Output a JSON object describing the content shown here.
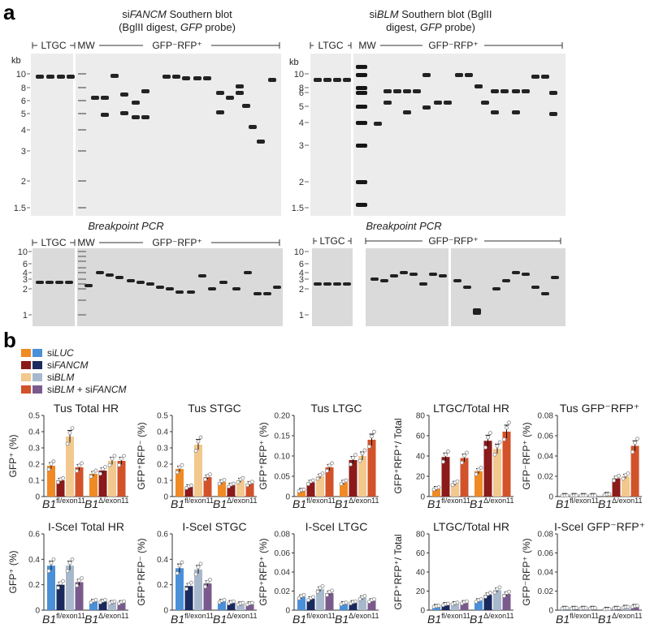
{
  "panel_a": {
    "label": "a",
    "blot1": {
      "title_line1_prefix": "si",
      "title_line1_italic": "FANCM",
      "title_line1_suffix": " Southern blot",
      "title_line2_a": "(BglII digest, ",
      "title_line2_italic": "GFP",
      "title_line2_b": " probe)",
      "group_ltgc": "LTGC",
      "group_mw": "MW",
      "group_gfp": "GFP⁻RFP⁺",
      "kb_label": "kb",
      "markers": [
        "10",
        "8",
        "6",
        "5",
        "4",
        "3",
        "2",
        "1.5"
      ]
    },
    "blot2": {
      "title_line1_prefix": "si",
      "title_line1_italic": "BLM",
      "title_line1_suffix": " Southern blot",
      "title_line1_extra": " (BglII",
      "title_line2_a": "digest, ",
      "title_line2_italic": "GFP",
      "title_line2_b": " probe)",
      "group_ltgc": "LTGC",
      "group_mw": "MW",
      "group_gfp": "GFP⁻RFP⁺",
      "kb_label": "kb",
      "markers": [
        "10",
        "8",
        "6",
        "5",
        "4",
        "3",
        "2",
        "1.5"
      ]
    },
    "pcr1": {
      "title": "Breakpoint PCR",
      "group_ltgc": "LTGC",
      "group_mw": "MW",
      "group_gfp": "GFP⁻RFP⁺",
      "markers": [
        "10",
        "6",
        "4",
        "3",
        "2",
        "1"
      ]
    },
    "pcr2": {
      "title": "Breakpoint PCR",
      "group_ltgc": "LTGC",
      "group_gfp": "GFP⁻RFP⁺",
      "markers": [
        "10",
        "6",
        "4",
        "3",
        "2",
        "1"
      ]
    }
  },
  "panel_b": {
    "label": "b",
    "legend": [
      {
        "prefix": "si",
        "italic": "LUC",
        "suffix": "",
        "color_a": "#f08a24",
        "color_b": "#4a90d9"
      },
      {
        "prefix": "si",
        "italic": "FANCM",
        "suffix": "",
        "color_a": "#8b1a1a",
        "color_b": "#1a2a5e"
      },
      {
        "prefix": "si",
        "italic": "BLM",
        "suffix": "",
        "color_a": "#f2c88e",
        "color_b": "#a8b8cc"
      },
      {
        "prefix": "si",
        "italic": "BLM",
        "suffix": " + si",
        "italic2": "FANCM",
        "color_a": "#d2522a",
        "color_b": "#7a5a8c"
      }
    ],
    "xgroup_fl": "B1",
    "xgroup_fl_sup": "fl/exon11",
    "xgroup_delta": "B1",
    "xgroup_delta_sup": "Δ/exon11",
    "colors_tus": [
      "#f08a24",
      "#8b1a1a",
      "#f2c88e",
      "#d2522a"
    ],
    "colors_isce": [
      "#4a90d9",
      "#1a2a5e",
      "#a8b8cc",
      "#7a5a8c"
    ]
  },
  "chart_data": [
    {
      "type": "bar",
      "title": "Tus Total HR",
      "ylabel": "GFP⁺ (%)",
      "yticks": [
        "0",
        "0.1",
        "0.2",
        "0.3",
        "0.4",
        "0.5"
      ],
      "ylim": [
        0,
        0.5
      ],
      "categories": [
        "B1 fl/exon11",
        "B1 Δ/exon11"
      ],
      "series": [
        {
          "name": "siLUC",
          "values": [
            0.19,
            0.14
          ]
        },
        {
          "name": "siFANCM",
          "values": [
            0.1,
            0.16
          ]
        },
        {
          "name": "siBLM",
          "values": [
            0.37,
            0.22
          ]
        },
        {
          "name": "siBLM + siFANCM",
          "values": [
            0.18,
            0.22
          ]
        }
      ]
    },
    {
      "type": "bar",
      "title": "Tus STGC",
      "ylabel": "GFP⁺RFP⁻ (%)",
      "yticks": [
        "0",
        "0.1",
        "0.2",
        "0.3",
        "0.4",
        "0.5"
      ],
      "ylim": [
        0,
        0.5
      ],
      "categories": [
        "B1 fl/exon11",
        "B1 Δ/exon11"
      ],
      "series": [
        {
          "name": "siLUC",
          "values": [
            0.17,
            0.09
          ]
        },
        {
          "name": "siFANCM",
          "values": [
            0.06,
            0.07
          ]
        },
        {
          "name": "siBLM",
          "values": [
            0.32,
            0.1
          ]
        },
        {
          "name": "siBLM + siFANCM",
          "values": [
            0.12,
            0.08
          ]
        }
      ]
    },
    {
      "type": "bar",
      "title": "Tus LTGC",
      "ylabel": "GFP⁺RFP⁺ (%)",
      "yticks": [
        "0",
        "0.05",
        "0.10",
        "0.15",
        "0.20"
      ],
      "ylim": [
        0,
        0.2
      ],
      "categories": [
        "B1 fl/exon11",
        "B1 Δ/exon11"
      ],
      "series": [
        {
          "name": "siLUC",
          "values": [
            0.015,
            0.035
          ]
        },
        {
          "name": "siFANCM",
          "values": [
            0.035,
            0.09
          ]
        },
        {
          "name": "siBLM",
          "values": [
            0.05,
            0.1
          ]
        },
        {
          "name": "siBLM + siFANCM",
          "values": [
            0.072,
            0.14
          ]
        }
      ]
    },
    {
      "type": "bar",
      "title": "LTGC/Total HR",
      "ylabel": "GFP⁺RFP⁺/ Total",
      "yticks": [
        "0",
        "20",
        "40",
        "60",
        "80"
      ],
      "ylim": [
        0,
        80
      ],
      "categories": [
        "B1 fl/exon11",
        "B1 Δ/exon11"
      ],
      "series": [
        {
          "name": "siLUC",
          "values": [
            8,
            25
          ]
        },
        {
          "name": "siFANCM",
          "values": [
            39,
            55
          ]
        },
        {
          "name": "siBLM",
          "values": [
            13,
            47
          ]
        },
        {
          "name": "siBLM + siFANCM",
          "values": [
            38,
            64
          ]
        }
      ]
    },
    {
      "type": "bar",
      "title": "Tus GFP⁻RFP⁺",
      "ylabel": "GFP⁻RFP⁺ (%)",
      "yticks": [
        "0",
        "0.02",
        "0.04",
        "0.06",
        "0.08"
      ],
      "ylim": [
        0,
        0.08
      ],
      "categories": [
        "B1 fl/exon11",
        "B1 Δ/exon11"
      ],
      "series": [
        {
          "name": "siLUC",
          "values": [
            0.001,
            0.002
          ]
        },
        {
          "name": "siFANCM",
          "values": [
            0.001,
            0.018
          ]
        },
        {
          "name": "siBLM",
          "values": [
            0.001,
            0.02
          ]
        },
        {
          "name": "siBLM + siFANCM",
          "values": [
            0.001,
            0.05
          ]
        }
      ]
    },
    {
      "type": "bar",
      "title": "I-SceI Total HR",
      "ylabel": "GFP⁺ (%)",
      "yticks": [
        "0",
        "0.2",
        "0.4",
        "0.6"
      ],
      "ylim": [
        0,
        0.6
      ],
      "categories": [
        "B1 fl/exon11",
        "B1 Δ/exon11"
      ],
      "series": [
        {
          "name": "siLUC",
          "values": [
            0.35,
            0.07
          ]
        },
        {
          "name": "siFANCM",
          "values": [
            0.2,
            0.07
          ]
        },
        {
          "name": "siBLM",
          "values": [
            0.35,
            0.06
          ]
        },
        {
          "name": "siBLM + siFANCM",
          "values": [
            0.22,
            0.06
          ]
        }
      ]
    },
    {
      "type": "bar",
      "title": "I-SceI STGC",
      "ylabel": "GFP⁺RFP⁻ (%)",
      "yticks": [
        "0",
        "0.2",
        "0.4",
        "0.6"
      ],
      "ylim": [
        0,
        0.6
      ],
      "categories": [
        "B1 fl/exon11",
        "B1 Δ/exon11"
      ],
      "series": [
        {
          "name": "siLUC",
          "values": [
            0.33,
            0.07
          ]
        },
        {
          "name": "siFANCM",
          "values": [
            0.19,
            0.06
          ]
        },
        {
          "name": "siBLM",
          "values": [
            0.32,
            0.05
          ]
        },
        {
          "name": "siBLM + siFANCM",
          "values": [
            0.21,
            0.05
          ]
        }
      ]
    },
    {
      "type": "bar",
      "title": "I-SceI LTGC",
      "ylabel": "GFP⁺RFP⁺ (%)",
      "yticks": [
        "0",
        "0.02",
        "0.04",
        "0.06",
        "0.08"
      ],
      "ylim": [
        0,
        0.08
      ],
      "categories": [
        "B1 fl/exon11",
        "B1 Δ/exon11"
      ],
      "series": [
        {
          "name": "siLUC",
          "values": [
            0.014,
            0.007
          ]
        },
        {
          "name": "siFANCM",
          "values": [
            0.012,
            0.008
          ]
        },
        {
          "name": "siBLM",
          "values": [
            0.022,
            0.013
          ]
        },
        {
          "name": "siBLM + siFANCM",
          "values": [
            0.018,
            0.01
          ]
        }
      ]
    },
    {
      "type": "bar",
      "title": "LTGC/Total HR",
      "ylabel": "GFP⁺RFP⁺/ Total",
      "yticks": [
        "0",
        "20",
        "40",
        "60",
        "80"
      ],
      "ylim": [
        0,
        80
      ],
      "categories": [
        "B1 fl/exon11",
        "B1 Δ/exon11"
      ],
      "series": [
        {
          "name": "siLUC",
          "values": [
            4,
            10
          ]
        },
        {
          "name": "siFANCM",
          "values": [
            6,
            16
          ]
        },
        {
          "name": "siBLM",
          "values": [
            7,
            21
          ]
        },
        {
          "name": "siBLM + siFANCM",
          "values": [
            8,
            17
          ]
        }
      ]
    },
    {
      "type": "bar",
      "title": "I-SceI GFP⁻RFP⁺",
      "ylabel": "GFP⁻RFP⁺ (%)",
      "yticks": [
        "0",
        "0.02",
        "0.04",
        "0.06",
        "0.08"
      ],
      "ylim": [
        0,
        0.08
      ],
      "categories": [
        "B1 fl/exon11",
        "B1 Δ/exon11"
      ],
      "series": [
        {
          "name": "siLUC",
          "values": [
            0.002,
            0.001
          ]
        },
        {
          "name": "siFANCM",
          "values": [
            0.002,
            0.002
          ]
        },
        {
          "name": "siBLM",
          "values": [
            0.002,
            0.003
          ]
        },
        {
          "name": "siBLM + siFANCM",
          "values": [
            0.002,
            0.004
          ]
        }
      ]
    }
  ]
}
